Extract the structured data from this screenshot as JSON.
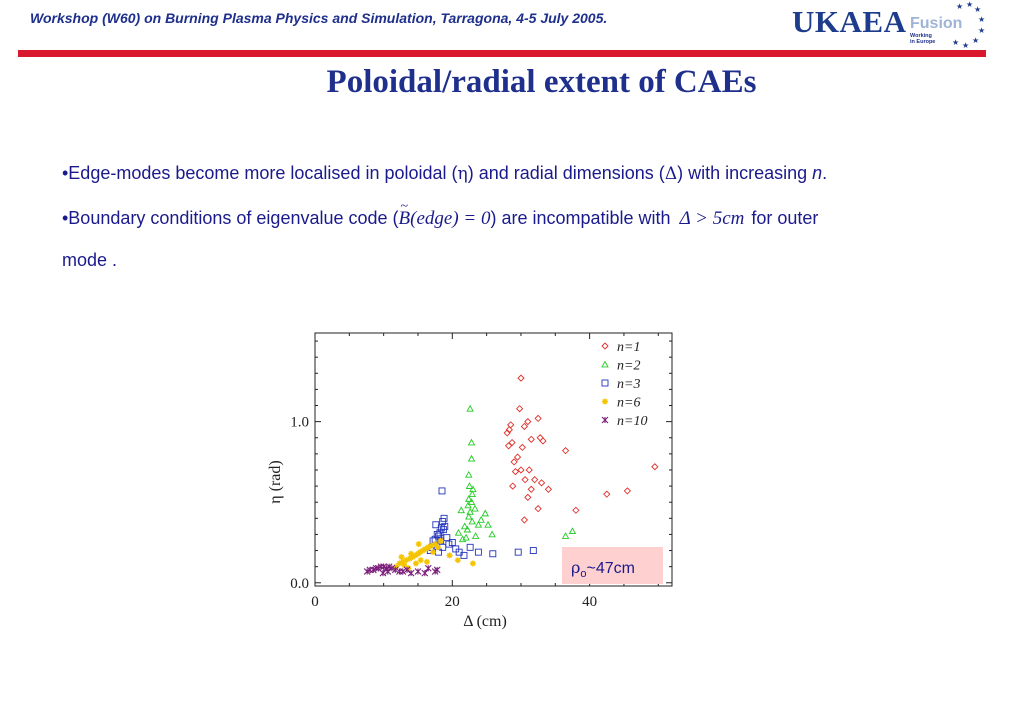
{
  "header": {
    "workshop": "Workshop (W60) on Burning Plasma Physics and Simulation, Tarragona, 4-5 July 2005."
  },
  "logo": {
    "ukaea": "UKAEA",
    "fusion": "Fusion",
    "working": "Working",
    "in_europe": "in Europe"
  },
  "title": "Poloidal/radial extent of CAEs",
  "bullets": {
    "b1_text": "•Edge-modes become more localised in poloidal (",
    "b1_sym1": "η",
    "b1_mid": ") and radial dimensions (",
    "b1_sym2": "Δ",
    "b1_end": ") with increasing ",
    "b1_n": "n",
    "b1_dot": ".",
    "b2_text": "•Boundary conditions of eigenvalue code (",
    "b2_math1": "B(edge) = 0",
    "b2_mid": ") are incompatible with ",
    "b2_math2": "Δ > 5cm",
    "b2_end": " for outer",
    "b3_text": "mode ."
  },
  "colors": {
    "n1": "#e0302a",
    "n2": "#22cc22",
    "n3": "#2233bb",
    "n6": "#f5c400",
    "n10": "#7a1e7a",
    "rho_box": "#ffd0d0",
    "brand_red": "#d9182d",
    "brand_blue": "#1e2f8c"
  },
  "chart_data": {
    "type": "scatter",
    "xlabel": "Δ (cm)",
    "ylabel": "η (rad)",
    "x_ticks": [
      {
        "value": 0,
        "label": "0"
      },
      {
        "value": 20,
        "label": "20"
      },
      {
        "value": 40,
        "label": "40"
      }
    ],
    "y_ticks": [
      {
        "value": 0,
        "label": "0.0"
      },
      {
        "value": 1.0,
        "label": "1.0"
      }
    ],
    "xlim": [
      0,
      52
    ],
    "ylim": [
      -0.02,
      1.55
    ],
    "legend_position": "top-right",
    "annotation": {
      "rho": "ρ",
      "sub": "o",
      "rest": "~47cm"
    },
    "series": [
      {
        "name": "n=1",
        "marker": "diamond",
        "color": "#e0302a",
        "x": [
          30.0,
          29.8,
          28.5,
          28.3,
          28.0,
          28.7,
          30.5,
          31.0,
          32.5,
          32.8,
          31.5,
          30.2,
          29.5,
          29.0,
          30.0,
          31.2,
          29.2,
          30.6,
          32.0,
          33.0,
          34.0,
          31.5,
          31.0,
          36.5,
          38.0,
          45.5,
          49.5,
          42.5,
          30.5,
          32.5,
          33.2,
          28.2,
          28.8
        ],
        "y": [
          1.27,
          1.08,
          0.98,
          0.95,
          0.93,
          0.87,
          0.97,
          1.0,
          1.02,
          0.9,
          0.89,
          0.84,
          0.78,
          0.75,
          0.7,
          0.7,
          0.69,
          0.64,
          0.64,
          0.62,
          0.58,
          0.58,
          0.53,
          0.82,
          0.45,
          0.57,
          0.72,
          0.55,
          0.39,
          0.46,
          0.88,
          0.85,
          0.6
        ]
      },
      {
        "name": "n=2",
        "marker": "triangle",
        "color": "#22cc22",
        "x": [
          22.6,
          22.8,
          22.8,
          22.4,
          22.5,
          23.0,
          22.9,
          22.4,
          22.8,
          22.3,
          22.6,
          23.3,
          22.4,
          22.9,
          21.8,
          22.2,
          23.8,
          24.2,
          24.8,
          25.2,
          25.8,
          23.4,
          22.0,
          21.5,
          20.9,
          21.3,
          36.5,
          37.5
        ],
        "y": [
          1.08,
          0.87,
          0.77,
          0.67,
          0.6,
          0.58,
          0.55,
          0.52,
          0.5,
          0.48,
          0.44,
          0.46,
          0.41,
          0.38,
          0.35,
          0.33,
          0.36,
          0.39,
          0.43,
          0.36,
          0.3,
          0.29,
          0.28,
          0.27,
          0.31,
          0.45,
          0.29,
          0.32
        ]
      },
      {
        "name": "n=3",
        "marker": "square",
        "color": "#2233bb",
        "x": [
          18.5,
          18.8,
          18.6,
          18.9,
          18.4,
          18.7,
          18.2,
          17.8,
          18.0,
          17.5,
          17.2,
          17.0,
          16.8,
          18.0,
          18.6,
          19.5,
          20.0,
          20.5,
          21.0,
          21.7,
          22.6,
          23.8,
          25.9,
          29.6,
          31.8,
          19.2,
          17.6,
          18.3
        ],
        "y": [
          0.57,
          0.4,
          0.38,
          0.35,
          0.34,
          0.33,
          0.31,
          0.3,
          0.29,
          0.27,
          0.26,
          0.22,
          0.2,
          0.19,
          0.22,
          0.24,
          0.25,
          0.21,
          0.19,
          0.17,
          0.22,
          0.19,
          0.18,
          0.19,
          0.2,
          0.28,
          0.36,
          0.26
        ]
      },
      {
        "name": "n=6",
        "marker": "star",
        "color": "#f5c400",
        "x": [
          11.8,
          12.3,
          12.8,
          13.3,
          13.8,
          14.2,
          14.6,
          15.0,
          15.3,
          15.7,
          16.1,
          16.5,
          16.9,
          13.0,
          14.0,
          15.4,
          17.2,
          17.5,
          17.9,
          18.3,
          15.1,
          16.3,
          14.7,
          13.6,
          12.6,
          19.6,
          20.8,
          23.0
        ],
        "y": [
          0.1,
          0.12,
          0.13,
          0.14,
          0.15,
          0.16,
          0.17,
          0.18,
          0.19,
          0.2,
          0.21,
          0.22,
          0.23,
          0.11,
          0.18,
          0.14,
          0.19,
          0.24,
          0.22,
          0.26,
          0.24,
          0.13,
          0.12,
          0.09,
          0.16,
          0.17,
          0.14,
          0.12
        ]
      },
      {
        "name": "n=10",
        "marker": "asterisk",
        "color": "#7a1e7a",
        "x": [
          7.6,
          8.0,
          8.5,
          8.9,
          9.2,
          9.6,
          10.0,
          10.4,
          10.8,
          11.2,
          11.7,
          12.3,
          12.8,
          13.4,
          14.0,
          15.0,
          16.0,
          16.5,
          17.5,
          17.8,
          9.9,
          10.6
        ],
        "y": [
          0.07,
          0.08,
          0.08,
          0.09,
          0.09,
          0.1,
          0.1,
          0.09,
          0.1,
          0.09,
          0.08,
          0.07,
          0.07,
          0.08,
          0.06,
          0.07,
          0.06,
          0.09,
          0.07,
          0.08,
          0.06,
          0.07
        ]
      }
    ]
  }
}
